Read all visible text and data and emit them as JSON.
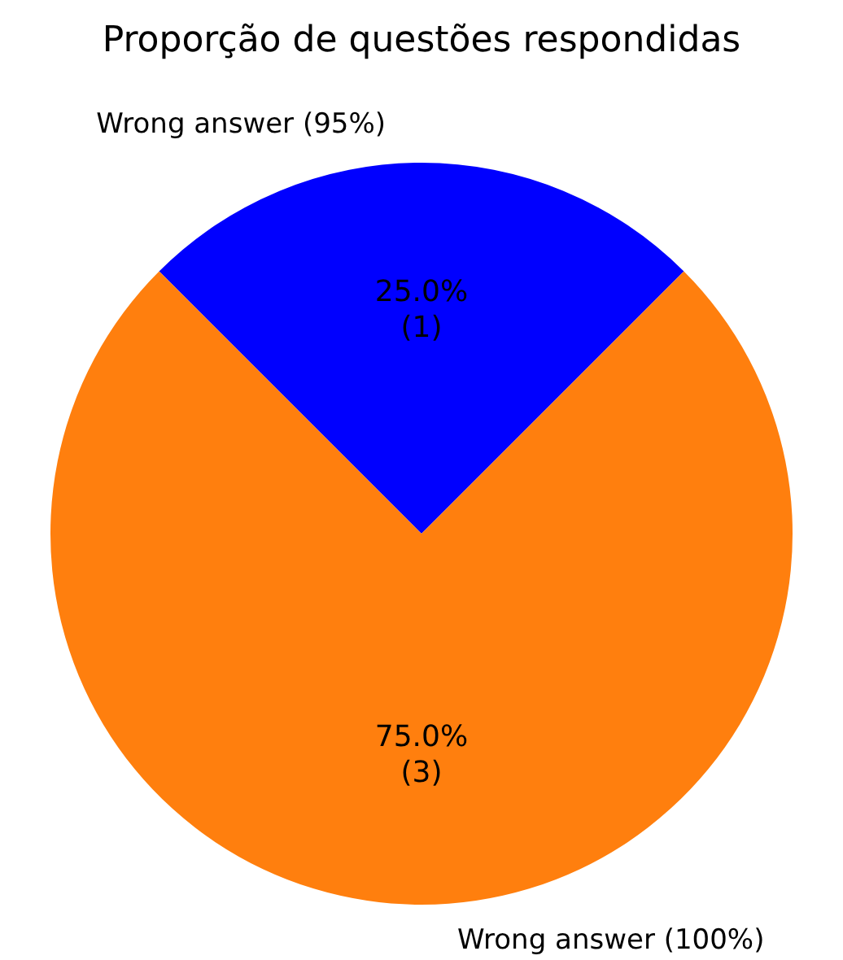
{
  "chart_data": {
    "type": "pie",
    "title": "Proporção de questões respondidas",
    "categories": [
      "Wrong answer (95%)",
      "Wrong answer (100%)"
    ],
    "values": [
      1,
      3
    ],
    "colors": [
      "#0000ff",
      "#ff7f0e"
    ],
    "value_labels": [
      "25.0%\n(1)",
      "75.0%\n(3)"
    ]
  }
}
